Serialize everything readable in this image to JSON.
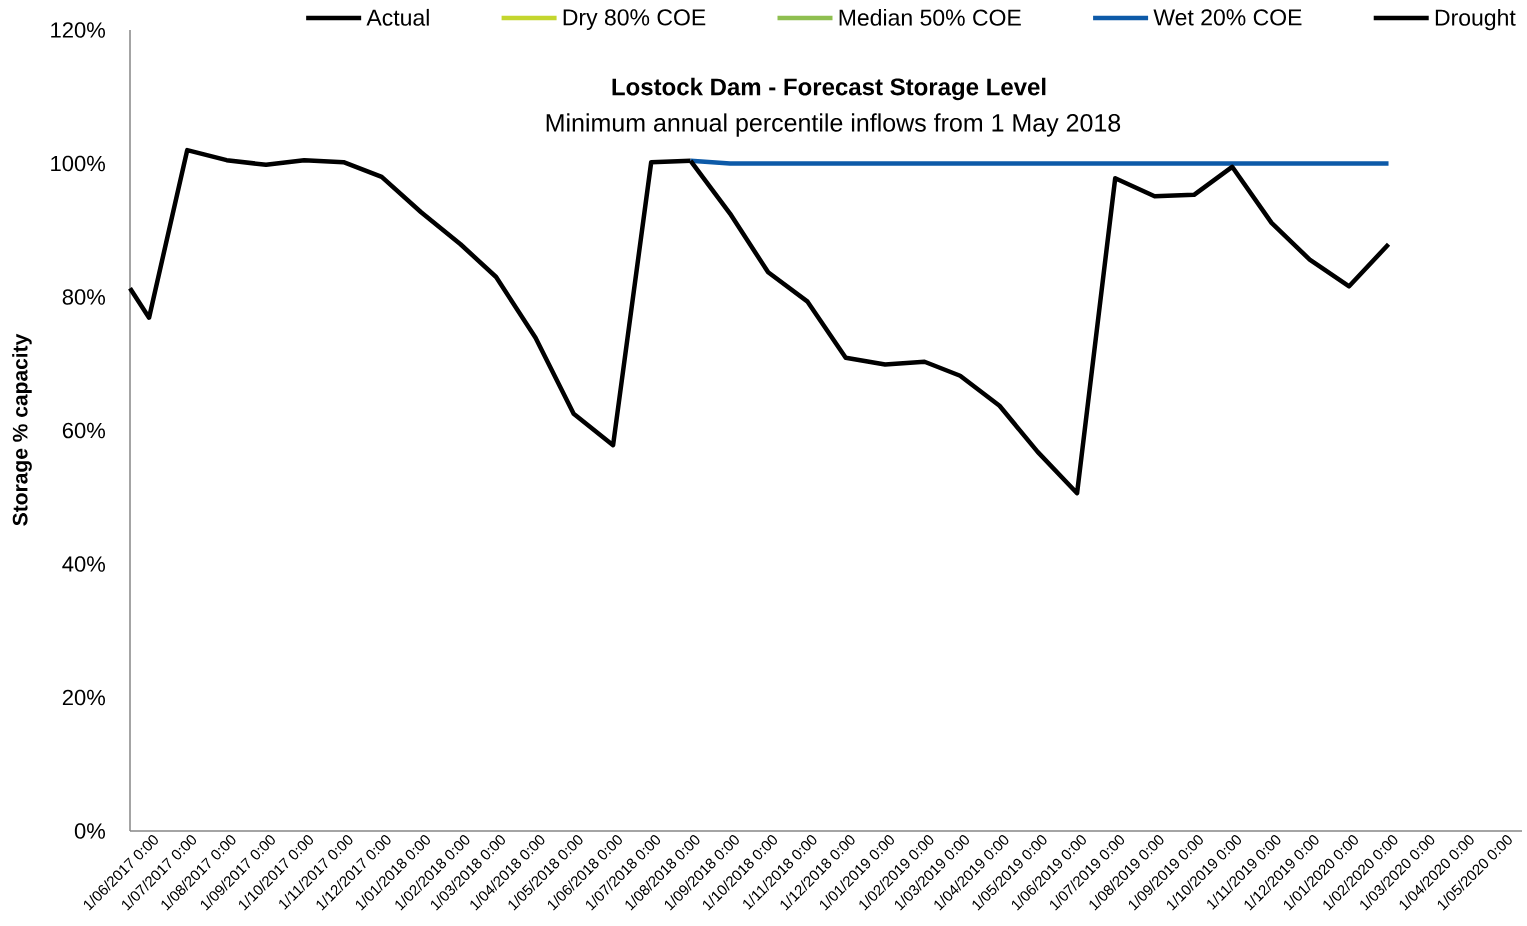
{
  "chart_data": {
    "type": "line",
    "title": "Lostock Dam - Forecast Storage Level",
    "subtitle": "Minimum annual percentile inflows from  1 May 2018",
    "ylabel": "Storage % capacity",
    "series": [
      {
        "name": "Actual",
        "color": "#000000",
        "x": [
          "2017-05-17",
          "2017-06-01",
          "2017-07-01",
          "2017-08-01",
          "2017-09-01",
          "2017-10-01",
          "2017-11-01",
          "2017-12-01",
          "2018-01-01",
          "2018-02-01",
          "2018-03-01",
          "2018-04-01",
          "2018-05-01",
          "2018-06-01",
          "2018-07-01",
          "2018-08-01"
        ],
        "values": [
          81.3,
          76.9,
          102.0,
          100.5,
          99.8,
          100.5,
          100.2,
          98.0,
          92.7,
          87.9,
          83.0,
          73.9,
          62.5,
          57.8,
          100.2,
          100.4
        ]
      },
      {
        "name": "Dry 80% COE",
        "color": "#c4d62e"
      },
      {
        "name": "Median 50% COE",
        "color": "#8fbf50"
      },
      {
        "name": "Wet 20% COE",
        "color": "#0d5aa8",
        "x": [
          "2018-08-01",
          "2018-09-01",
          "2018-10-01",
          "2018-11-01",
          "2018-12-01",
          "2019-01-01",
          "2019-02-01",
          "2019-03-01",
          "2019-04-01",
          "2019-05-01",
          "2019-06-01",
          "2019-07-01",
          "2019-08-01",
          "2019-09-01",
          "2019-10-01",
          "2019-11-01",
          "2019-12-01",
          "2020-01-01",
          "2020-02-01"
        ],
        "values": [
          100.4,
          100,
          100,
          100,
          100,
          100,
          100,
          100,
          100,
          100,
          100,
          100,
          100,
          100,
          100,
          100,
          100,
          100,
          100
        ]
      },
      {
        "name": "Drought",
        "color": "#000000",
        "x": [
          "2018-08-01",
          "2018-09-01",
          "2018-10-01",
          "2018-11-01",
          "2018-12-01",
          "2019-01-01",
          "2019-02-01",
          "2019-03-01",
          "2019-04-01",
          "2019-05-01",
          "2019-06-01",
          "2019-07-01",
          "2019-08-01",
          "2019-09-01",
          "2019-10-01",
          "2019-11-01",
          "2019-12-01",
          "2020-01-01",
          "2020-02-01"
        ],
        "values": [
          100.4,
          92.5,
          83.7,
          79.3,
          70.9,
          69.9,
          70.3,
          68.2,
          63.7,
          56.8,
          50.6,
          97.8,
          95.1,
          95.3,
          99.5,
          91.1,
          85.6,
          81.6,
          87.9
        ]
      }
    ],
    "xlim": [
      "2017-05-17",
      "2020-05-16"
    ],
    "xticks": [
      {
        "value": "2017-06-01",
        "label": "1/06/2017 0:00"
      },
      {
        "value": "2017-07-01",
        "label": "1/07/2017 0:00"
      },
      {
        "value": "2017-08-01",
        "label": "1/08/2017 0:00"
      },
      {
        "value": "2017-09-01",
        "label": "1/09/2017 0:00"
      },
      {
        "value": "2017-10-01",
        "label": "1/10/2017 0:00"
      },
      {
        "value": "2017-11-01",
        "label": "1/11/2017 0:00"
      },
      {
        "value": "2017-12-01",
        "label": "1/12/2017 0:00"
      },
      {
        "value": "2018-01-01",
        "label": "1/01/2018 0:00"
      },
      {
        "value": "2018-02-01",
        "label": "1/02/2018 0:00"
      },
      {
        "value": "2018-03-01",
        "label": "1/03/2018 0:00"
      },
      {
        "value": "2018-04-01",
        "label": "1/04/2018 0:00"
      },
      {
        "value": "2018-05-01",
        "label": "1/05/2018 0:00"
      },
      {
        "value": "2018-06-01",
        "label": "1/06/2018 0:00"
      },
      {
        "value": "2018-07-01",
        "label": "1/07/2018 0:00"
      },
      {
        "value": "2018-08-01",
        "label": "1/08/2018 0:00"
      },
      {
        "value": "2018-09-01",
        "label": "1/09/2018 0:00"
      },
      {
        "value": "2018-10-01",
        "label": "1/10/2018 0:00"
      },
      {
        "value": "2018-11-01",
        "label": "1/11/2018 0:00"
      },
      {
        "value": "2018-12-01",
        "label": "1/12/2018 0:00"
      },
      {
        "value": "2019-01-01",
        "label": "1/01/2019 0:00"
      },
      {
        "value": "2019-02-01",
        "label": "1/02/2019 0:00"
      },
      {
        "value": "2019-03-01",
        "label": "1/03/2019 0:00"
      },
      {
        "value": "2019-04-01",
        "label": "1/04/2019 0:00"
      },
      {
        "value": "2019-05-01",
        "label": "1/05/2019 0:00"
      },
      {
        "value": "2019-06-01",
        "label": "1/06/2019 0:00"
      },
      {
        "value": "2019-07-01",
        "label": "1/07/2019 0:00"
      },
      {
        "value": "2019-08-01",
        "label": "1/08/2019 0:00"
      },
      {
        "value": "2019-09-01",
        "label": "1/09/2019 0:00"
      },
      {
        "value": "2019-10-01",
        "label": "1/10/2019 0:00"
      },
      {
        "value": "2019-11-01",
        "label": "1/11/2019 0:00"
      },
      {
        "value": "2019-12-01",
        "label": "1/12/2019 0:00"
      },
      {
        "value": "2020-01-01",
        "label": "1/01/2020 0:00"
      },
      {
        "value": "2020-02-01",
        "label": "1/02/2020 0:00"
      },
      {
        "value": "2020-03-01",
        "label": "1/03/2020 0:00"
      },
      {
        "value": "2020-04-01",
        "label": "1/04/2020 0:00"
      },
      {
        "value": "2020-05-01",
        "label": "1/05/2020 0:00"
      }
    ],
    "ylim": [
      0,
      120
    ],
    "yticks": [
      {
        "value": 0,
        "label": "0%"
      },
      {
        "value": 20,
        "label": "20%"
      },
      {
        "value": 40,
        "label": "40%"
      },
      {
        "value": 60,
        "label": "60%"
      },
      {
        "value": 80,
        "label": "80%"
      },
      {
        "value": 100,
        "label": "100%"
      },
      {
        "value": 120,
        "label": "120%"
      }
    ],
    "grid": false,
    "legend": "top",
    "marker": "none",
    "line_style": "solid"
  }
}
